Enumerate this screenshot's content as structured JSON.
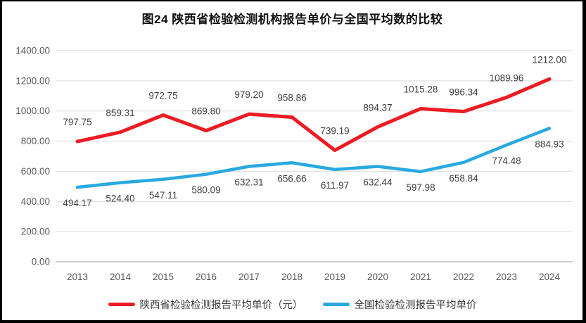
{
  "chart": {
    "title": "图24 陕西省检验检测机构报告单价与全国平均数的比较"
  },
  "chart_data": {
    "type": "line",
    "title": "图24 陕西省检验检测机构报告单价与全国平均数的比较",
    "categories": [
      "2013",
      "2014",
      "2015",
      "2016",
      "2017",
      "2018",
      "2019",
      "2020",
      "2021",
      "2022",
      "2023",
      "2024"
    ],
    "series": [
      {
        "name": "陕西省检验检测报告平均单价（元）",
        "color": "#ed1c24",
        "line_width": 5,
        "label_position": "above",
        "values": [
          797.75,
          859.31,
          972.75,
          869.8,
          979.2,
          958.86,
          739.19,
          894.37,
          1015.28,
          996.34,
          1089.96,
          1212.0
        ]
      },
      {
        "name": "全国检验检测报告平均单价",
        "color": "#29a9e0",
        "line_width": 4.5,
        "label_position": "below",
        "values": [
          494.17,
          524.4,
          547.11,
          580.09,
          632.31,
          656.66,
          611.97,
          632.44,
          597.98,
          658.84,
          774.48,
          884.93
        ]
      }
    ],
    "xlabel": "",
    "ylabel": "",
    "ylim": [
      0,
      1400
    ],
    "ytick_step": 200,
    "ytick_labels": [
      "0.00",
      "200.00",
      "400.00",
      "600.00",
      "800.00",
      "1000.00",
      "1200.00",
      "1400.00"
    ],
    "grid": "horizontal",
    "legend_position": "bottom",
    "colors": {
      "gridline": "#d9d9d9",
      "axis_line": "#bfbfbf",
      "tick_text": "#595959",
      "data_label_text": "#404040",
      "title_text": "#111111"
    }
  }
}
